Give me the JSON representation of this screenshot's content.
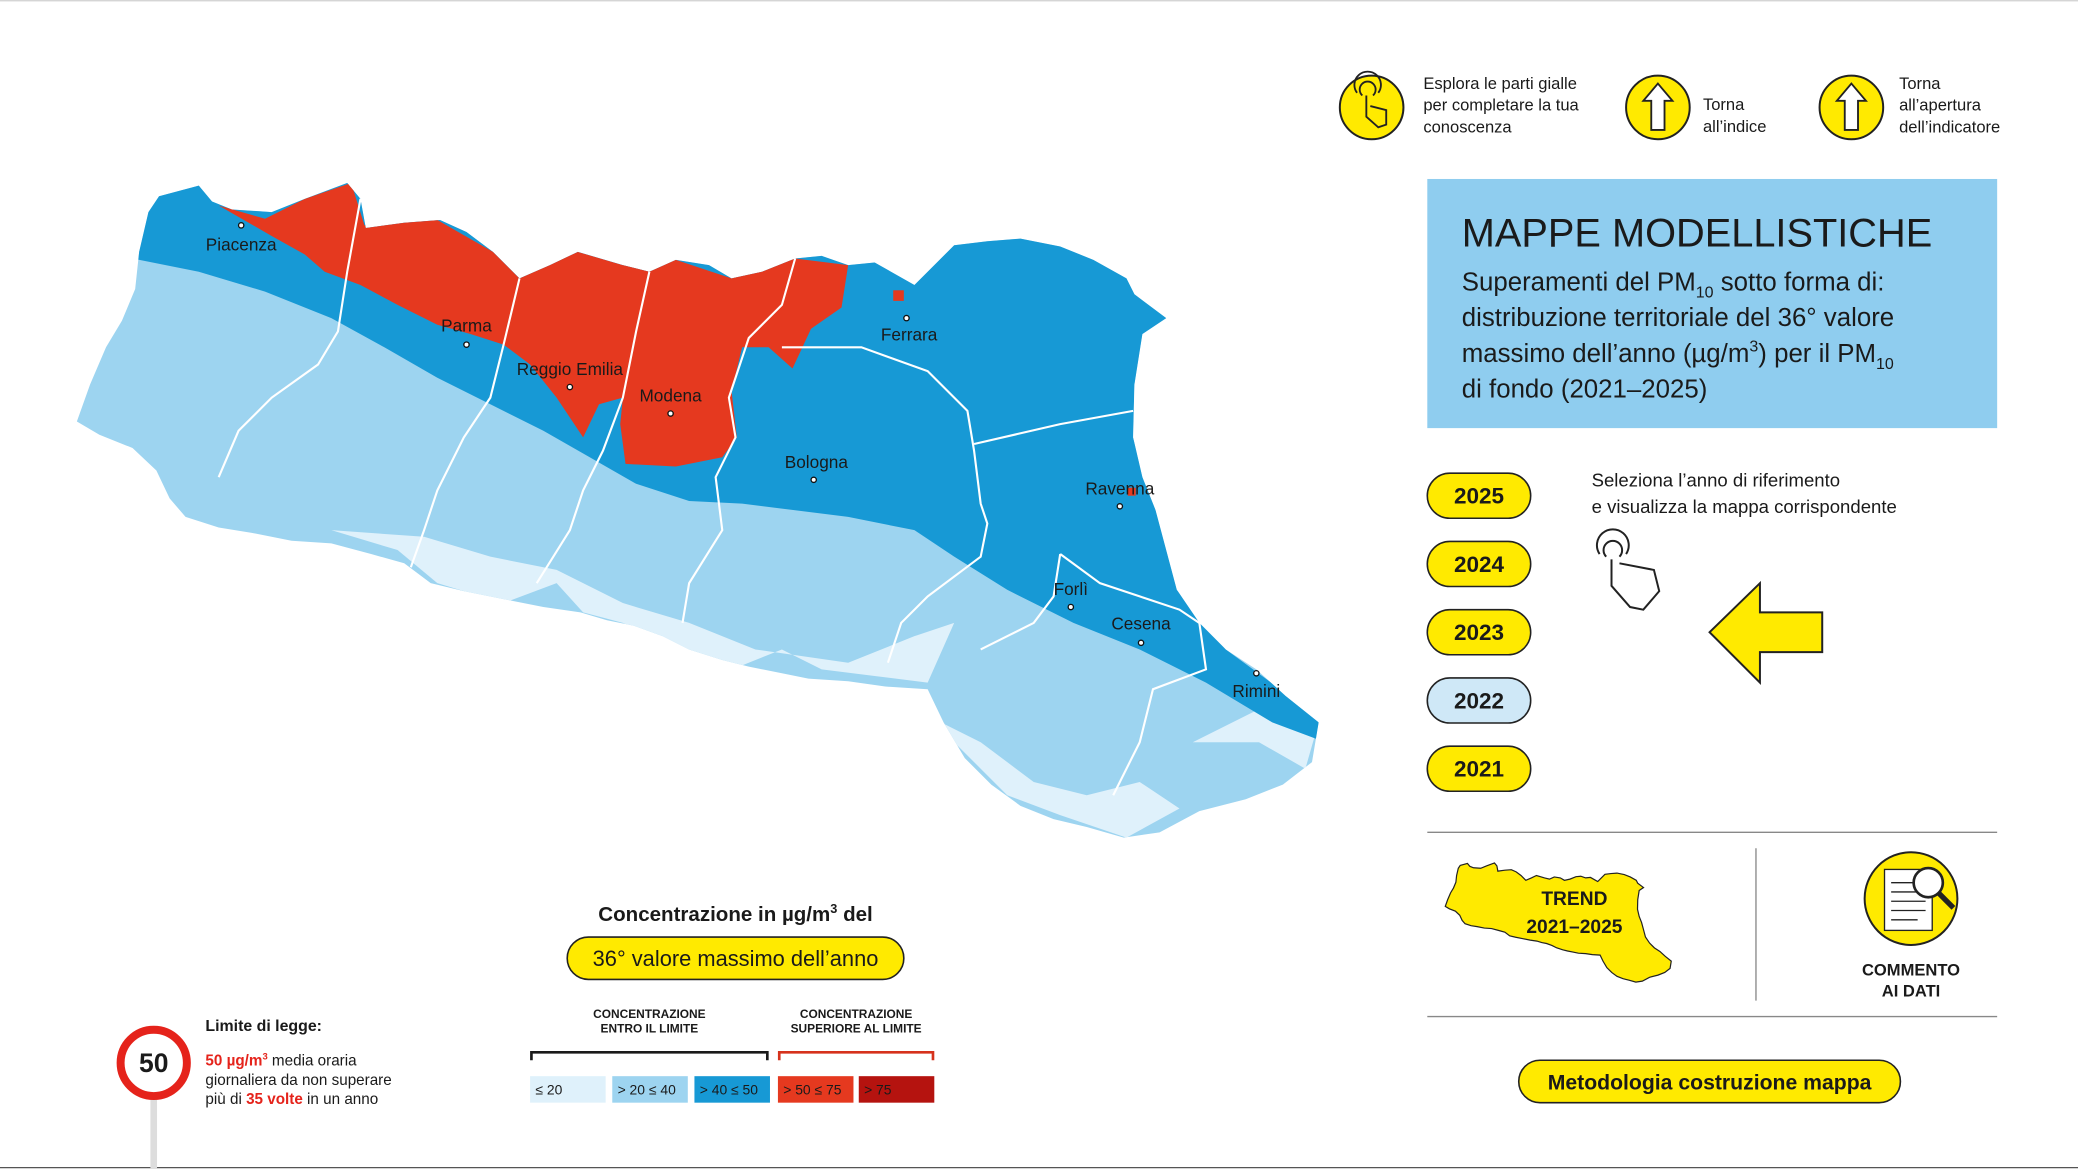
{
  "nav": [
    {
      "lines": [
        "Esplora le parti gialle",
        "per completare la tua",
        "conoscenza"
      ]
    },
    {
      "lines": [
        "Torna",
        "all’indice"
      ]
    },
    {
      "lines": [
        "Torna",
        "all’apertura",
        "dell’indicatore"
      ]
    }
  ],
  "panel": {
    "title": "MAPPE MODELLISTICHE",
    "subtitle": [
      [
        {
          "text": "Superamenti del PM"
        },
        {
          "text": "10",
          "style": "sub"
        },
        {
          "text": " sotto forma di:"
        }
      ],
      [
        {
          "text": "distribuzione territoriale del 36° valore"
        }
      ],
      [
        {
          "text": "massimo dell’anno (µg/m"
        },
        {
          "text": "3",
          "style": "sup"
        },
        {
          "text": ") per il PM"
        },
        {
          "text": "10",
          "style": "sub"
        }
      ],
      [
        {
          "text": "di fondo (2021–2025)"
        }
      ]
    ]
  },
  "years": [
    {
      "label": "2025",
      "selected": false
    },
    {
      "label": "2024",
      "selected": false
    },
    {
      "label": "2023",
      "selected": false
    },
    {
      "label": "2022",
      "selected": true
    },
    {
      "label": "2021",
      "selected": false
    }
  ],
  "instruction": [
    "Seleziona l’anno di riferimento",
    "e visualizza la mappa corrispondente"
  ],
  "trend": [
    "TREND",
    "2021–2025"
  ],
  "comment": [
    "COMMENTO",
    "AI DATI"
  ],
  "method_button": "Metodologia costruzione mappa",
  "map": {
    "cities": [
      "Piacenza",
      "Parma",
      "Reggio Emilia",
      "Modena",
      "Ferrara",
      "Bologna",
      "Ravenna",
      "Forlì",
      "Cesena",
      "Rimini"
    ]
  },
  "legend": {
    "heading": [
      {
        "text": "Concentrazione in µg/m"
      },
      {
        "text": "3",
        "style": "sup"
      },
      {
        "text": " del"
      }
    ],
    "pill": "36° valore massimo dell’anno",
    "groups": [
      {
        "lines": [
          "CONCENTRAZIONE",
          "ENTRO IL LIMITE"
        ],
        "color": "#1a1a1a"
      },
      {
        "lines": [
          "CONCENTRAZIONE",
          "SUPERIORE AL LIMITE"
        ],
        "color": "#d6321c"
      }
    ],
    "classes": [
      {
        "label": "≤ 20",
        "color": "#dff1fb"
      },
      {
        "label": "> 20 ≤ 40",
        "color": "#9dd4f0"
      },
      {
        "label": "> 40 ≤ 50",
        "color": "#1799d5"
      },
      {
        "label": "> 50 ≤ 75",
        "color": "#e5391f"
      },
      {
        "label": "> 75",
        "color": "#b5130f"
      }
    ]
  },
  "limit": {
    "sign": "50",
    "title": "Limite di legge:",
    "lines": [
      [
        {
          "text": "50 µg/m",
          "style": "red"
        },
        {
          "text": "3",
          "style": "red-sup"
        },
        {
          "text": " media oraria"
        }
      ],
      [
        {
          "text": "giornaliera da non superare"
        }
      ],
      [
        {
          "text": "più di "
        },
        {
          "text": "35 volte",
          "style": "red"
        },
        {
          "text": " in un anno"
        }
      ]
    ]
  }
}
